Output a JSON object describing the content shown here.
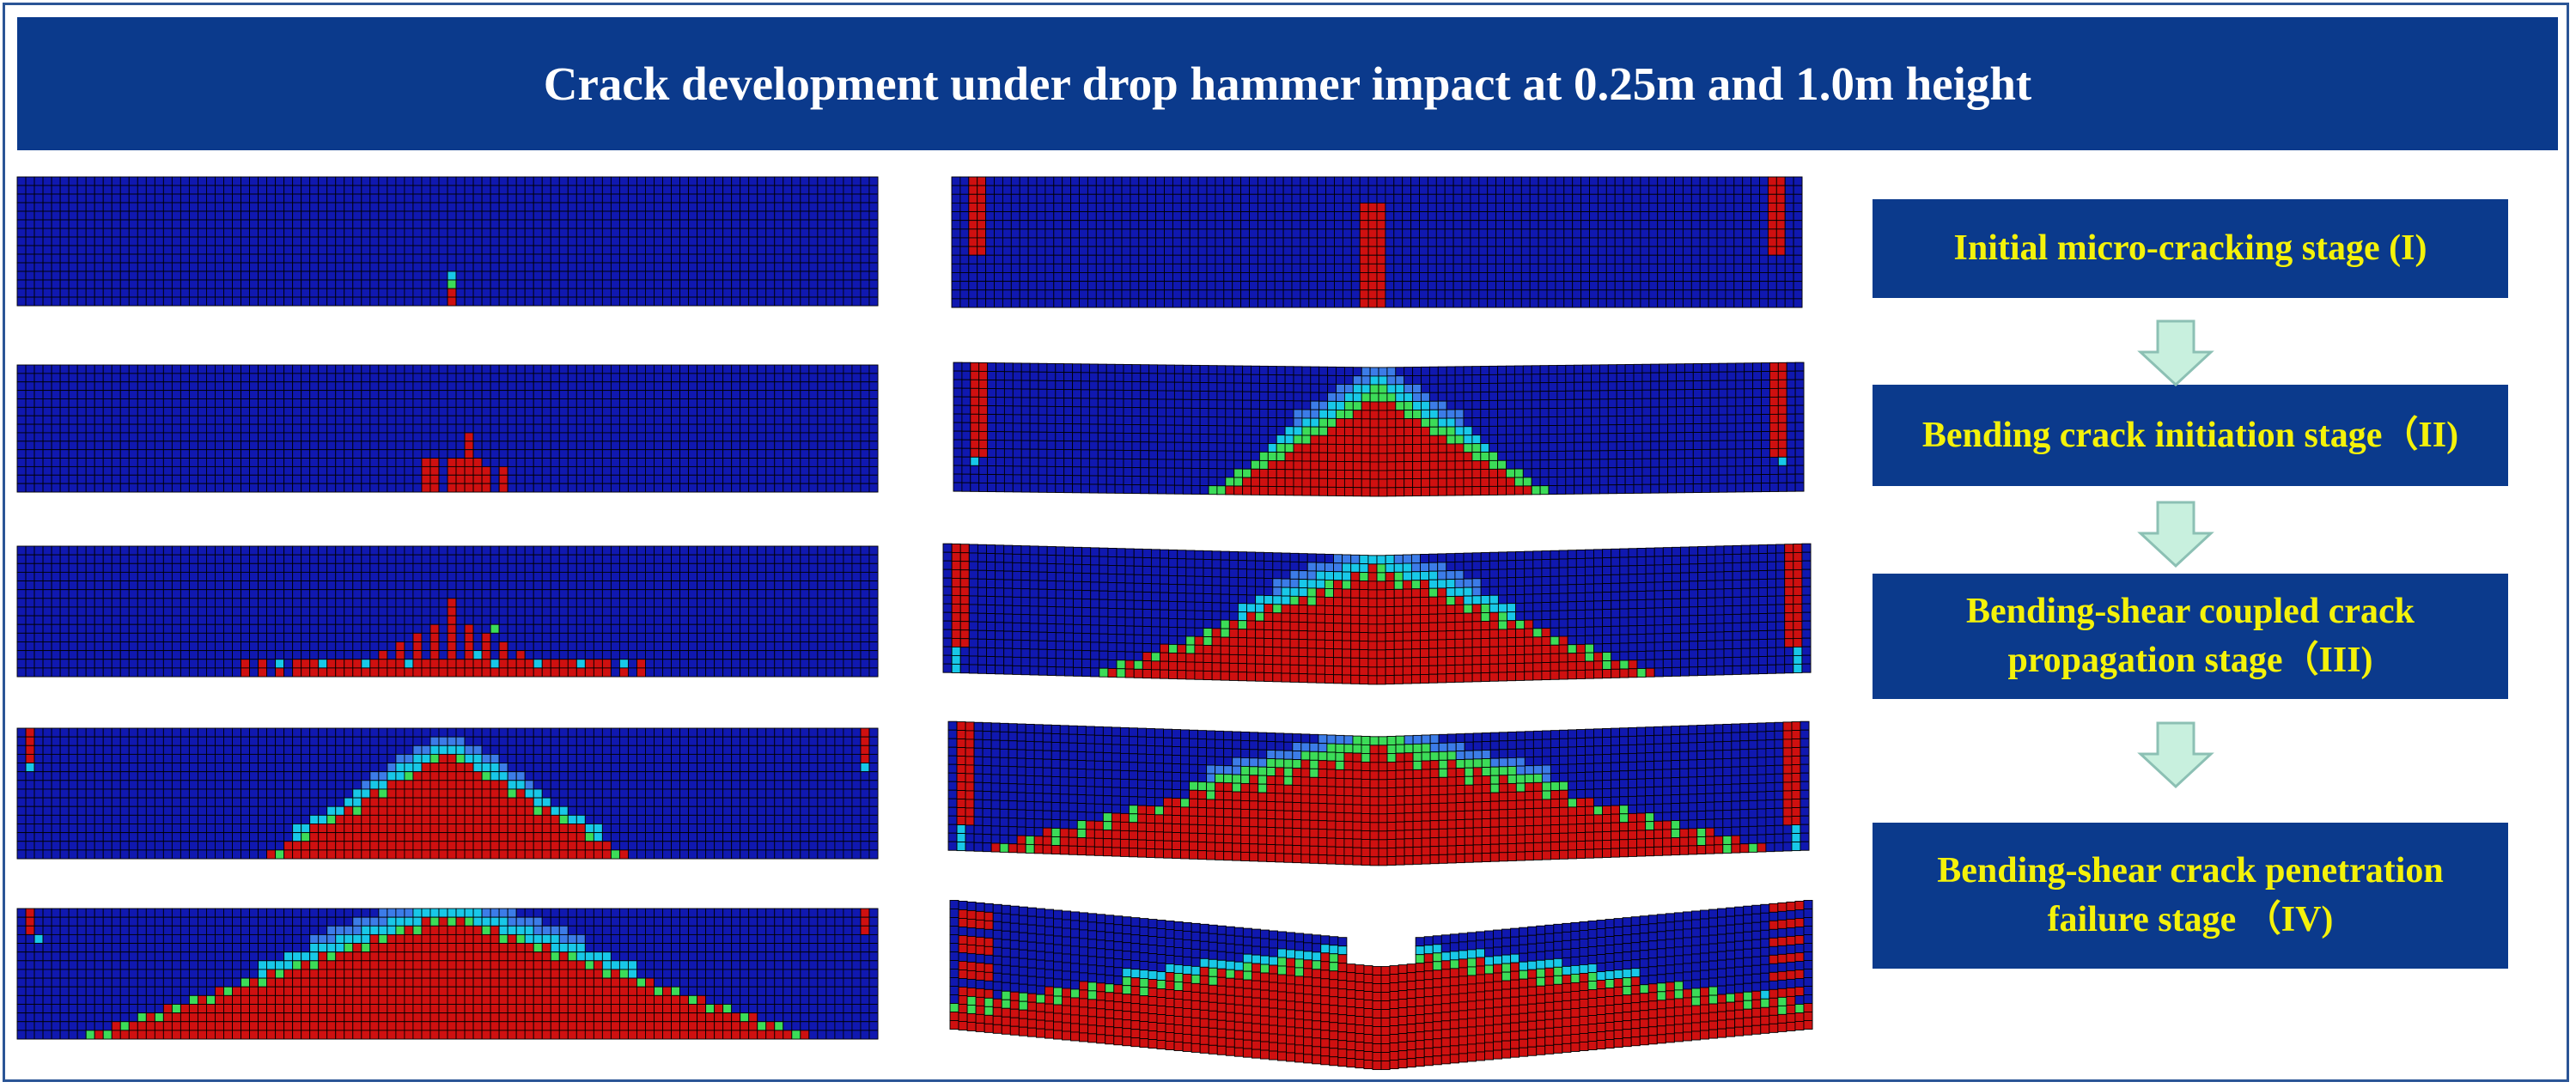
{
  "title": "Crack development under drop hammer impact at 0.25m and 1.0m height",
  "colors": {
    "mesh_blue": "#1018b0",
    "crack_red": "#cf1010",
    "cyan": "#18c8e8",
    "green": "#3cdc58",
    "light_blue": "#3c7ce8",
    "title_bg": "#0b3a8c",
    "stage_text": "#f4f20a",
    "arrow_fill": "#c8f0de",
    "arrow_stroke": "#8cc0b4"
  },
  "stages": [
    {
      "label": "Initial micro-cracking stage (I)"
    },
    {
      "label": "Bending crack initiation stage（II)"
    },
    {
      "label": "Bending-shear coupled crack\npropagation stage（III)"
    },
    {
      "label": "Bending-shear crack penetration\nfailure stage （IV)"
    }
  ],
  "columns": [
    {
      "drop_height": "0.25m",
      "images": [
        "stage I",
        "stage II",
        "stage III",
        "stage IV",
        "stage IV final"
      ]
    },
    {
      "drop_height": "1.0m",
      "images": [
        "stage I",
        "stage II",
        "stage III",
        "stage IV",
        "stage IV final"
      ]
    }
  ]
}
